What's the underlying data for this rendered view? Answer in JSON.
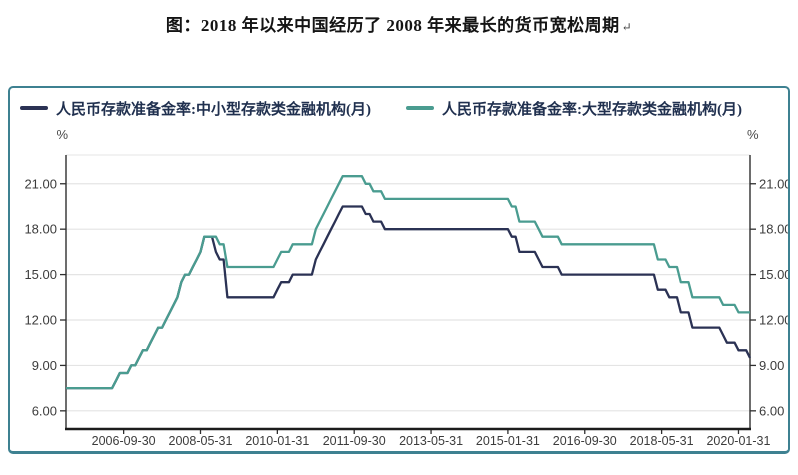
{
  "page": {
    "title": "图：2018 年以来中国经历了 2008 年来最长的货币宽松周期",
    "title_return_mark": "↵"
  },
  "chart_data": {
    "type": "line",
    "title": "图：2018 年以来中国经历了 2008 年来最长的货币宽松周期",
    "unit_label_left": "%",
    "unit_label_right": "%",
    "frequency": "monthly",
    "x_start": "2005-06-30",
    "x_end": "2020-04-30",
    "months": 179,
    "ylim": [
      4.8,
      22.9
    ],
    "y_ticks": [
      6,
      9,
      12,
      15,
      18,
      21
    ],
    "y_tick_format": "two_decimals",
    "grid": "horizontal",
    "legend_position": "top",
    "x_ticks": [
      {
        "m": 15,
        "label": "2006-09-30"
      },
      {
        "m": 35,
        "label": "2008-05-31"
      },
      {
        "m": 55,
        "label": "2010-01-31"
      },
      {
        "m": 75,
        "label": "2011-09-30"
      },
      {
        "m": 95,
        "label": "2013-05-31"
      },
      {
        "m": 115,
        "label": "2015-01-31"
      },
      {
        "m": 135,
        "label": "2016-09-30"
      },
      {
        "m": 155,
        "label": "2018-05-31"
      },
      {
        "m": 175,
        "label": "2020-01-31"
      }
    ],
    "series": [
      {
        "name": "人民币存款准备金率:中小型存款类金融机构(月)",
        "color": "#2b3254",
        "values_rle_percent_months": [
          [
            7.5,
            13
          ],
          [
            8,
            1
          ],
          [
            8.5,
            3
          ],
          [
            9,
            2
          ],
          [
            9.5,
            1
          ],
          [
            10,
            2
          ],
          [
            10.5,
            1
          ],
          [
            11,
            1
          ],
          [
            11.5,
            2
          ],
          [
            12,
            1
          ],
          [
            12.5,
            1
          ],
          [
            13,
            1
          ],
          [
            13.5,
            1
          ],
          [
            14.5,
            1
          ],
          [
            15,
            2
          ],
          [
            15.5,
            1
          ],
          [
            16,
            1
          ],
          [
            16.5,
            1
          ],
          [
            17.5,
            3
          ],
          [
            16.5,
            1
          ],
          [
            16,
            2
          ],
          [
            13.5,
            13
          ],
          [
            14,
            1
          ],
          [
            14.5,
            3
          ],
          [
            15,
            6
          ],
          [
            16,
            1
          ],
          [
            16.5,
            1
          ],
          [
            17,
            1
          ],
          [
            17.5,
            1
          ],
          [
            18,
            1
          ],
          [
            18.5,
            1
          ],
          [
            19,
            1
          ],
          [
            19.5,
            6
          ],
          [
            19,
            2
          ],
          [
            18.5,
            3
          ],
          [
            18,
            33
          ],
          [
            17.5,
            2
          ],
          [
            16.5,
            5
          ],
          [
            16,
            1
          ],
          [
            15.5,
            5
          ],
          [
            15,
            25
          ],
          [
            14,
            3
          ],
          [
            13.5,
            3
          ],
          [
            12.5,
            3
          ],
          [
            11.5,
            8
          ],
          [
            11,
            1
          ],
          [
            10.5,
            3
          ],
          [
            10,
            3
          ],
          [
            9.5,
            1
          ]
        ]
      },
      {
        "name": "人民币存款准备金率:大型存款类金融机构(月)",
        "color": "#4a9c90",
        "values_rle_percent_months": [
          [
            7.5,
            13
          ],
          [
            8,
            1
          ],
          [
            8.5,
            3
          ],
          [
            9,
            2
          ],
          [
            9.5,
            1
          ],
          [
            10,
            2
          ],
          [
            10.5,
            1
          ],
          [
            11,
            1
          ],
          [
            11.5,
            2
          ],
          [
            12,
            1
          ],
          [
            12.5,
            1
          ],
          [
            13,
            1
          ],
          [
            13.5,
            1
          ],
          [
            14.5,
            1
          ],
          [
            15,
            2
          ],
          [
            15.5,
            1
          ],
          [
            16,
            1
          ],
          [
            16.5,
            1
          ],
          [
            17.5,
            4
          ],
          [
            17,
            2
          ],
          [
            15.5,
            13
          ],
          [
            16,
            1
          ],
          [
            16.5,
            3
          ],
          [
            17,
            6
          ],
          [
            18,
            1
          ],
          [
            18.5,
            1
          ],
          [
            19,
            1
          ],
          [
            19.5,
            1
          ],
          [
            20,
            1
          ],
          [
            20.5,
            1
          ],
          [
            21,
            1
          ],
          [
            21.5,
            6
          ],
          [
            21,
            2
          ],
          [
            20.5,
            3
          ],
          [
            20,
            33
          ],
          [
            19.5,
            2
          ],
          [
            18.5,
            5
          ],
          [
            18,
            1
          ],
          [
            17.5,
            5
          ],
          [
            17,
            25
          ],
          [
            16,
            3
          ],
          [
            15.5,
            3
          ],
          [
            14.5,
            3
          ],
          [
            13.5,
            8
          ],
          [
            13,
            4
          ],
          [
            12.5,
            4
          ]
        ]
      }
    ],
    "colors": {
      "panel_border": "#3e8191",
      "grid": "#e4e4e4",
      "axis": "#2f2f2f",
      "axis_bottom": "#1c1c1c",
      "tick_text": "#3c3c3c"
    }
  }
}
